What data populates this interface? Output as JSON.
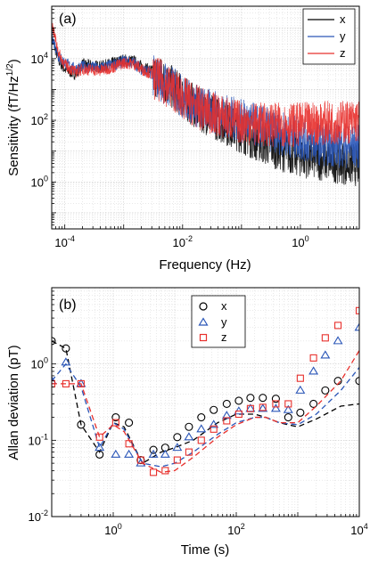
{
  "colors": {
    "x": "#000000",
    "y": "#2a56b8",
    "z": "#e8302c",
    "grid": "#c8c8c8"
  },
  "chart_data": [
    {
      "type": "line",
      "panel_label": "(a)",
      "xlabel": "Frequency (Hz)",
      "ylabel_main": "Sensitivity (fT/Hz",
      "ylabel_sup": "1/2",
      "ylabel_end": ")",
      "xscale": "log",
      "yscale": "log",
      "xlim": [
        6e-05,
        10
      ],
      "ylim": [
        0.03,
        500000
      ],
      "xticks": [
        {
          "v": 0.0001,
          "base": "10",
          "exp": "-4"
        },
        {
          "v": 0.01,
          "base": "10",
          "exp": "-2"
        },
        {
          "v": 1,
          "base": "10",
          "exp": "0"
        }
      ],
      "yticks": [
        {
          "v": 1,
          "base": "10",
          "exp": "0"
        },
        {
          "v": 100,
          "base": "10",
          "exp": "2"
        },
        {
          "v": 10000,
          "base": "10",
          "exp": "4"
        }
      ],
      "legend_position": "top-right",
      "series": [
        {
          "name": "x",
          "color": "#000000",
          "x": [
            6e-05,
            8e-05,
            0.0001,
            0.00015,
            0.0002,
            0.0004,
            0.0007,
            0.001,
            0.0015,
            0.002,
            0.004,
            0.007,
            0.01,
            0.02,
            0.05,
            0.1,
            0.2,
            0.5,
            1,
            2,
            5,
            10
          ],
          "y": [
            50000,
            9000,
            5000,
            3500,
            7000,
            6000,
            8000,
            10000,
            9000,
            6000,
            3500,
            1500,
            800,
            300,
            120,
            60,
            30,
            15,
            10,
            8,
            6,
            5
          ]
        },
        {
          "name": "y",
          "color": "#2a56b8",
          "x": [
            6e-05,
            8e-05,
            0.0001,
            0.00015,
            0.0002,
            0.0004,
            0.0007,
            0.001,
            0.0015,
            0.002,
            0.004,
            0.007,
            0.01,
            0.02,
            0.05,
            0.1,
            0.2,
            0.5,
            1,
            2,
            5,
            10
          ],
          "y": [
            60000,
            12000,
            8000,
            5000,
            6000,
            5500,
            7000,
            9000,
            8000,
            5000,
            3000,
            1500,
            800,
            350,
            200,
            130,
            90,
            50,
            35,
            25,
            20,
            20
          ]
        },
        {
          "name": "z",
          "color": "#e8302c",
          "x": [
            6e-05,
            8e-05,
            0.0001,
            0.00015,
            0.0002,
            0.0004,
            0.0007,
            0.001,
            0.0015,
            0.002,
            0.004,
            0.007,
            0.01,
            0.02,
            0.05,
            0.1,
            0.2,
            0.5,
            1,
            2,
            5,
            10
          ],
          "y": [
            150000,
            15000,
            7000,
            4000,
            5000,
            4500,
            6000,
            8000,
            7500,
            5000,
            2800,
            1400,
            750,
            330,
            170,
            120,
            100,
            100,
            100,
            110,
            120,
            130
          ]
        }
      ]
    },
    {
      "type": "scatter",
      "panel_label": "(b)",
      "xlabel": "Time (s)",
      "ylabel": "Allan deviation (pT)",
      "xscale": "log",
      "yscale": "log",
      "xlim": [
        0.1,
        10000
      ],
      "ylim": [
        0.01,
        10
      ],
      "xticks": [
        {
          "v": 1,
          "base": "10",
          "exp": "0"
        },
        {
          "v": 100,
          "base": "10",
          "exp": "2"
        },
        {
          "v": 10000,
          "base": "10",
          "exp": "4"
        }
      ],
      "yticks": [
        {
          "v": 0.01,
          "base": "10",
          "exp": "-2"
        },
        {
          "v": 0.1,
          "base": "10",
          "exp": "-1"
        },
        {
          "v": 1,
          "base": "10",
          "exp": "0"
        }
      ],
      "legend_position": "top-center",
      "series": [
        {
          "name": "x",
          "color": "#000000",
          "marker": "circle",
          "x": [
            0.1,
            0.17,
            0.3,
            0.6,
            1.1,
            1.8,
            2.8,
            4.5,
            7,
            11,
            17,
            27,
            43,
            70,
            110,
            170,
            270,
            440,
            700,
            1100,
            1800,
            2800,
            4500,
            10000
          ],
          "y": [
            2.0,
            1.6,
            0.16,
            0.065,
            0.2,
            0.17,
            0.055,
            0.075,
            0.08,
            0.11,
            0.15,
            0.2,
            0.25,
            0.3,
            0.33,
            0.36,
            0.36,
            0.35,
            0.2,
            0.23,
            0.3,
            0.45,
            0.6,
            0.6
          ],
          "fit_x": [
            0.1,
            0.17,
            0.3,
            0.6,
            1,
            1.5,
            3,
            6,
            10,
            20,
            50,
            100,
            200,
            300,
            500,
            1000,
            2000,
            5000,
            10000
          ],
          "fit_y": [
            2.0,
            1.6,
            0.16,
            0.07,
            0.17,
            0.15,
            0.05,
            0.07,
            0.08,
            0.1,
            0.17,
            0.22,
            0.22,
            0.2,
            0.17,
            0.15,
            0.19,
            0.28,
            0.3
          ]
        },
        {
          "name": "y",
          "color": "#2a56b8",
          "marker": "triangle",
          "x": [
            0.1,
            0.17,
            0.3,
            0.6,
            1.1,
            1.8,
            2.8,
            4.5,
            7,
            11,
            17,
            27,
            43,
            70,
            110,
            170,
            270,
            440,
            700,
            1100,
            1800,
            2800,
            4500,
            10000
          ],
          "y": [
            0.6,
            1.05,
            0.55,
            0.08,
            0.065,
            0.065,
            0.05,
            0.065,
            0.065,
            0.08,
            0.11,
            0.14,
            0.16,
            0.21,
            0.24,
            0.26,
            0.26,
            0.26,
            0.25,
            0.45,
            0.8,
            1.3,
            2.0,
            3.0
          ],
          "fit_x": [
            0.1,
            0.17,
            0.3,
            0.6,
            1,
            1.5,
            3,
            6,
            10,
            20,
            50,
            100,
            200,
            300,
            500,
            1000,
            2000,
            5000,
            10000
          ],
          "fit_y": [
            0.6,
            1.0,
            0.5,
            0.08,
            0.17,
            0.14,
            0.05,
            0.045,
            0.05,
            0.07,
            0.12,
            0.17,
            0.2,
            0.2,
            0.17,
            0.16,
            0.22,
            0.45,
            0.9
          ]
        },
        {
          "name": "z",
          "color": "#e8302c",
          "marker": "square",
          "x": [
            0.1,
            0.17,
            0.3,
            0.6,
            1.1,
            1.8,
            2.8,
            4.5,
            7,
            11,
            17,
            27,
            43,
            70,
            110,
            170,
            270,
            440,
            700,
            1100,
            1800,
            2800,
            4500,
            10000
          ],
          "y": [
            0.55,
            0.55,
            0.55,
            0.11,
            0.17,
            0.09,
            0.055,
            0.038,
            0.04,
            0.055,
            0.07,
            0.1,
            0.14,
            0.18,
            0.22,
            0.26,
            0.27,
            0.3,
            0.3,
            0.65,
            1.2,
            2.2,
            3.2,
            5.0
          ],
          "fit_x": [
            0.1,
            0.17,
            0.3,
            0.6,
            1,
            1.5,
            3,
            6,
            10,
            20,
            50,
            100,
            200,
            300,
            500,
            1000,
            2000,
            5000,
            10000
          ],
          "fit_y": [
            0.55,
            0.55,
            0.55,
            0.11,
            0.16,
            0.13,
            0.05,
            0.038,
            0.04,
            0.06,
            0.11,
            0.16,
            0.2,
            0.2,
            0.17,
            0.17,
            0.28,
            0.6,
            1.5
          ]
        }
      ]
    }
  ]
}
